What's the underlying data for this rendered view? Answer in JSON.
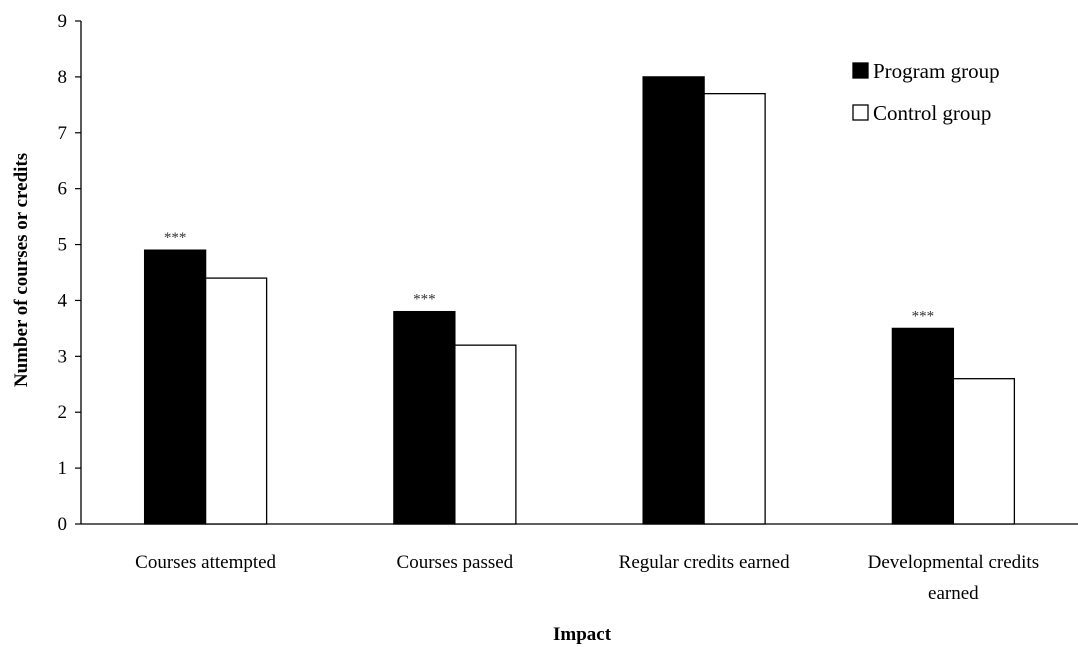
{
  "chart_data": {
    "type": "bar",
    "title": "",
    "xlabel": "Impact",
    "ylabel": "Number of courses or credits",
    "ylim": [
      0,
      9
    ],
    "yticks": [
      0,
      1,
      2,
      3,
      4,
      5,
      6,
      7,
      8,
      9
    ],
    "grid": false,
    "legend_position": "top-right",
    "categories": [
      [
        "Courses attempted"
      ],
      [
        "Courses passed"
      ],
      [
        "Regular credits earned"
      ],
      [
        "Developmental credits",
        "earned"
      ]
    ],
    "series": [
      {
        "name": "Program group",
        "values": [
          4.9,
          3.8,
          8.0,
          3.5
        ],
        "fill": "#000000"
      },
      {
        "name": "Control group",
        "values": [
          4.4,
          3.2,
          7.7,
          2.6
        ],
        "fill": "#ffffff"
      }
    ],
    "annotations": [
      "***",
      "***",
      "",
      "***"
    ]
  }
}
